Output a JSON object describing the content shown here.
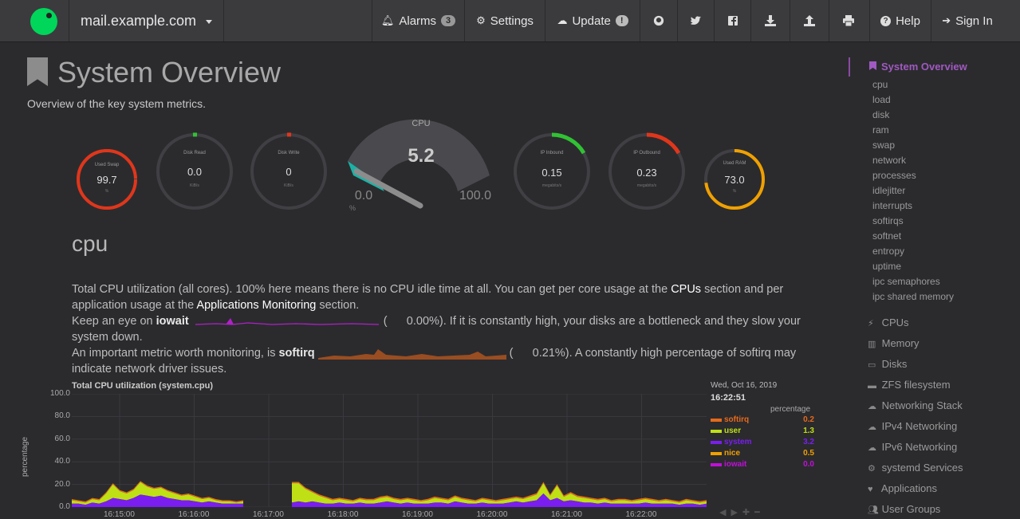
{
  "navbar": {
    "host": "mail.example.com",
    "alarms_label": "Alarms",
    "alarms_count": "3",
    "settings_label": "Settings",
    "update_label": "Update",
    "update_badge": "!",
    "help_label": "Help",
    "signin_label": "Sign In",
    "icons": [
      "github-icon",
      "twitter-icon",
      "facebook-icon",
      "download-icon",
      "upload-icon",
      "print-icon"
    ]
  },
  "page": {
    "title": "System Overview",
    "subtitle": "Overview of the key system metrics."
  },
  "gauges": {
    "swap": {
      "label": "Used Swap",
      "value": "99.7",
      "unit": "%",
      "color": "#e0361b",
      "level": 0.997
    },
    "disk_read": {
      "label": "Disk Read",
      "value": "0.0",
      "unit": "KiB/s",
      "color": "#31c234"
    },
    "disk_write": {
      "label": "Disk Write",
      "value": "0",
      "unit": "KiB/s",
      "color": "#e0361b"
    },
    "cpu": {
      "label": "CPU",
      "value": "5.2",
      "min": "0.0",
      "max": "100.0",
      "unit": "%",
      "level": 0.052
    },
    "ip_in": {
      "label": "IP Inbound",
      "value": "0.15",
      "unit": "megabits/s",
      "color": "#31c234"
    },
    "ip_out": {
      "label": "IP Outbound",
      "value": "0.23",
      "unit": "megabits/s",
      "color": "#e0361b"
    },
    "ram": {
      "label": "Used RAM",
      "value": "73.0",
      "unit": "%",
      "color": "#f0a000",
      "level": 0.73
    }
  },
  "section": {
    "title": "cpu",
    "p1_a": "Total CPU utilization (all cores). 100% here means there is no CPU idle time at all. You can get per core usage at the ",
    "p1_link1": "CPUs",
    "p1_b": " section and per application usage at the ",
    "p1_link2": "Applications Monitoring",
    "p1_c": " section.",
    "p2_a": "Keep an eye on ",
    "p2_bold": "iowait",
    "p2_open": "(",
    "p2_val": "0.00%",
    "p2_rest": "). If it is constantly high, your disks are a bottleneck and they slow your system down.",
    "p3_a": "An important metric worth monitoring, is ",
    "p3_bold": "softirq",
    "p3_open": "(",
    "p3_val": "0.21%",
    "p3_rest": "). A constantly high percentage of softirq may indicate network driver issues."
  },
  "chart_data": {
    "type": "area",
    "title": "Total CPU utilization (system.cpu)",
    "ylabel": "percentage",
    "ylim": [
      0,
      100
    ],
    "yticks": [
      "100.0",
      "80.0",
      "60.0",
      "40.0",
      "20.0",
      "0.0"
    ],
    "xticks": [
      "16:15:00",
      "16:16:00",
      "16:17:00",
      "16:18:00",
      "16:19:00",
      "16:20:00",
      "16:21:00",
      "16:22:00"
    ],
    "legend": {
      "date": "Wed, Oct 16, 2019",
      "time": "16:22:51",
      "units": "percentage",
      "series": [
        {
          "name": "softirq",
          "color": "#e66a1a",
          "value": "0.2"
        },
        {
          "name": "user",
          "color": "#bfe014",
          "value": "1.3"
        },
        {
          "name": "system",
          "color": "#7a1ef0",
          "value": "3.2"
        },
        {
          "name": "nice",
          "color": "#f0a000",
          "value": "0.5"
        },
        {
          "name": "iowait",
          "color": "#c010d8",
          "value": "0.0"
        }
      ]
    },
    "samples": {
      "system": [
        3,
        3,
        2,
        4,
        3,
        5,
        6,
        8,
        7,
        9,
        11,
        10,
        9,
        10,
        8,
        7,
        6,
        6,
        5,
        4,
        5,
        4,
        3,
        3,
        3,
        null,
        null,
        null,
        null,
        null,
        null,
        null,
        null,
        null,
        null,
        null,
        null,
        null,
        null,
        null,
        null,
        null,
        null,
        null,
        null,
        null,
        null,
        null,
        null,
        null,
        null,
        null,
        null,
        null,
        null,
        null,
        null,
        null,
        null,
        null,
        null,
        null,
        null,
        null,
        null,
        null,
        null,
        null,
        null,
        null,
        null,
        null,
        null,
        null,
        null,
        null,
        null,
        null,
        null,
        null,
        null,
        null,
        null,
        null,
        null,
        null,
        null,
        null,
        null,
        null,
        null,
        null,
        null,
        null,
        null,
        null,
        null,
        null,
        null,
        null
      ],
      "stack_top": [
        6,
        5,
        4,
        7,
        6,
        12,
        20,
        14,
        12,
        15,
        22,
        18,
        16,
        17,
        14,
        12,
        10,
        11,
        9,
        7,
        8,
        6,
        5,
        5,
        4
      ]
    }
  },
  "sidebar": {
    "active": "System Overview",
    "sub": [
      "cpu",
      "load",
      "disk",
      "ram",
      "swap",
      "network",
      "processes",
      "idlejitter",
      "interrupts",
      "softirqs",
      "softnet",
      "entropy",
      "uptime",
      "ipc semaphores",
      "ipc shared memory"
    ],
    "main": [
      {
        "label": "CPUs",
        "icon": "bolt-icon"
      },
      {
        "label": "Memory",
        "icon": "memory-icon"
      },
      {
        "label": "Disks",
        "icon": "hdd-icon"
      },
      {
        "label": "ZFS filesystem",
        "icon": "folder-icon"
      },
      {
        "label": "Networking Stack",
        "icon": "cloud-icon"
      },
      {
        "label": "IPv4 Networking",
        "icon": "cloud-icon"
      },
      {
        "label": "IPv6 Networking",
        "icon": "cloud-icon"
      },
      {
        "label": "systemd Services",
        "icon": "cogs-icon"
      },
      {
        "label": "Applications",
        "icon": "heartbeat-icon"
      },
      {
        "label": "User Groups",
        "icon": "users-icon"
      }
    ]
  }
}
